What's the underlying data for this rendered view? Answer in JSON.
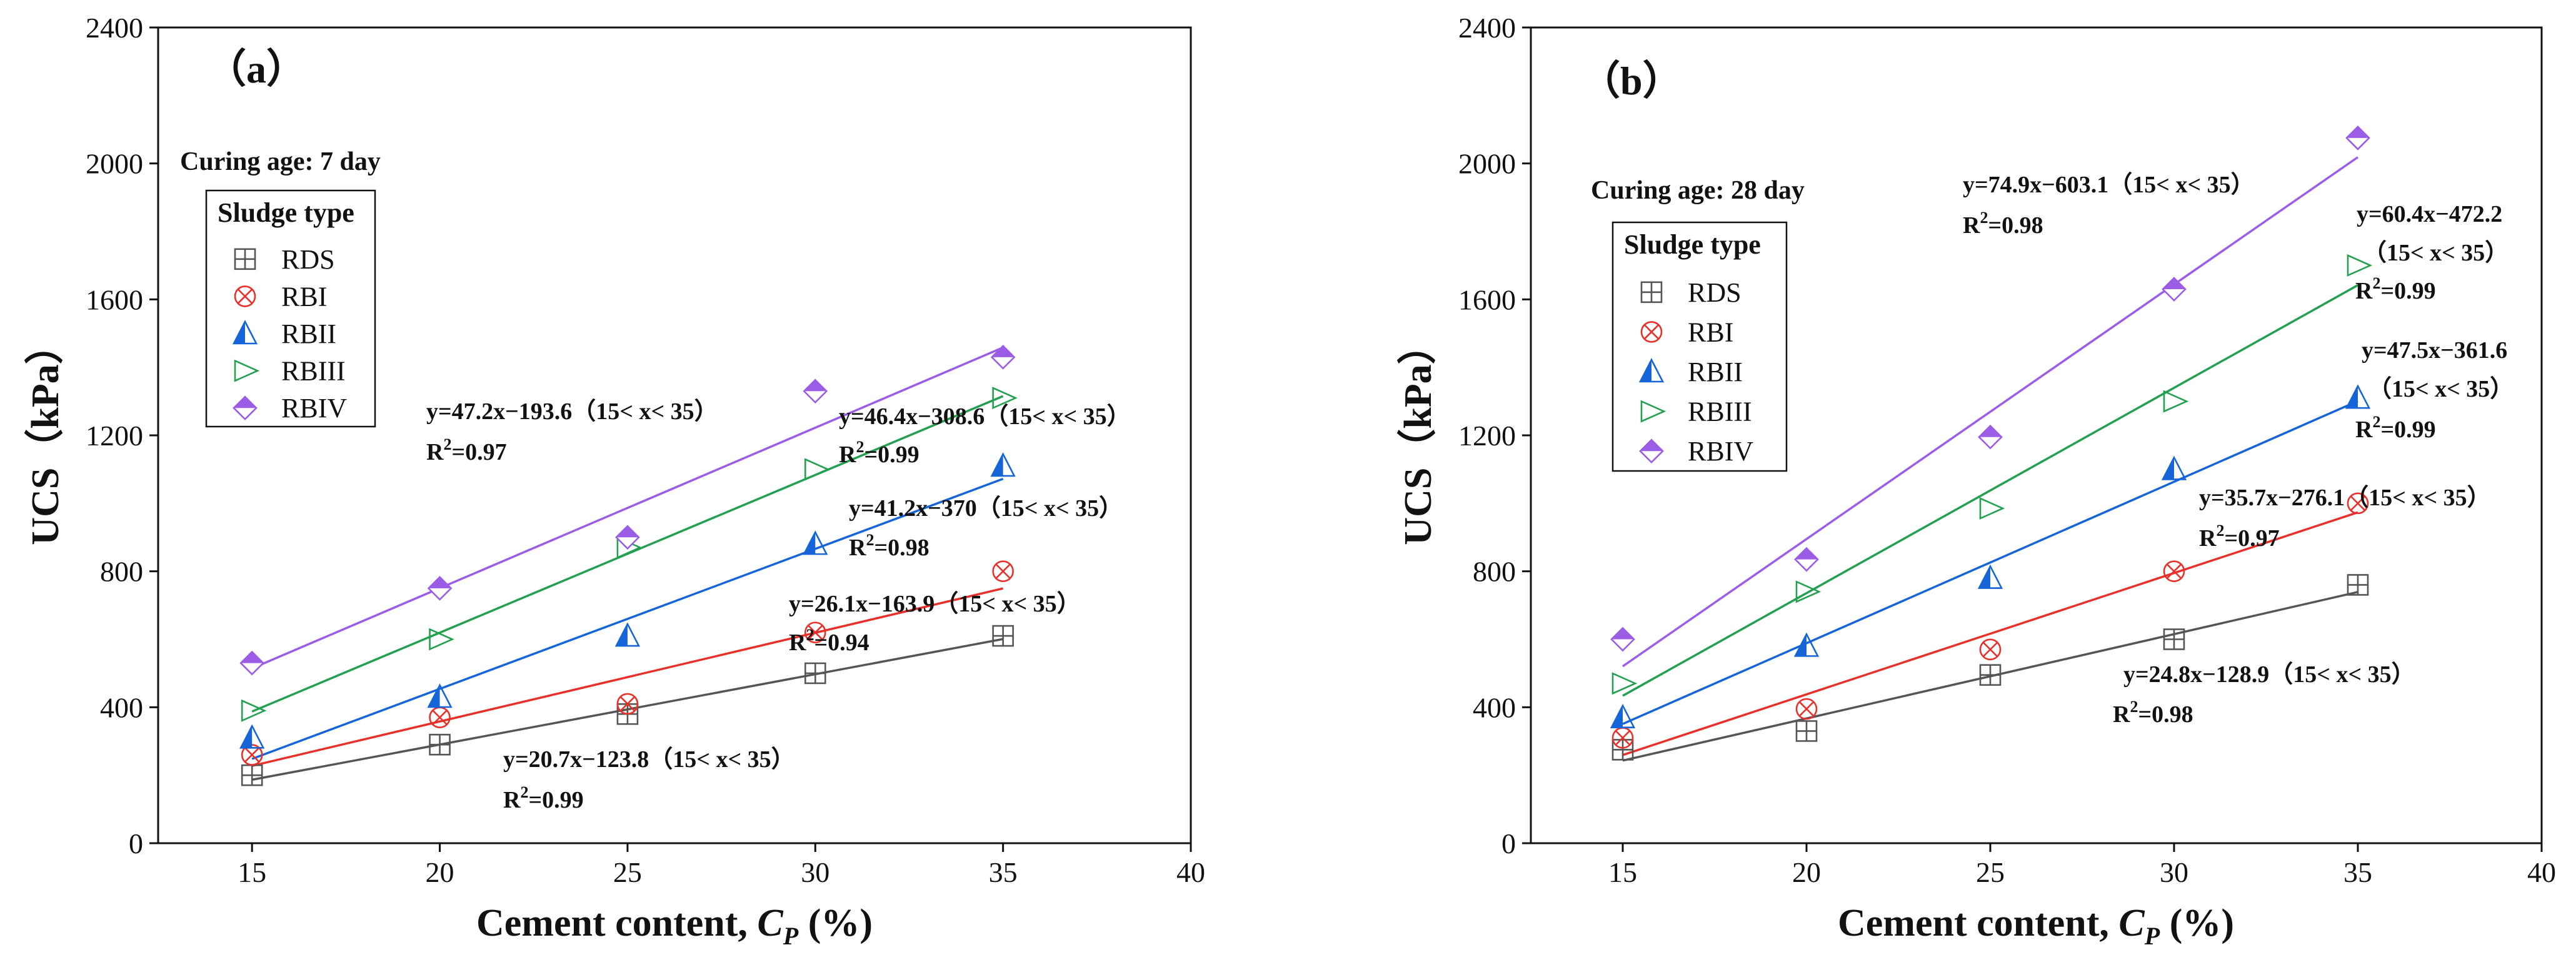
{
  "chart_data": [
    {
      "type": "scatter",
      "panel_label": "（a）",
      "curing_age": "Curing age: 7 day",
      "xlabel": "Cement content, ",
      "xlabel_symbol": "C",
      "xlabel_subscript": "P",
      "xlabel_unit": " (%)",
      "ylabel": "UCS（kPa）",
      "xlim": [
        12.5,
        40
      ],
      "ylim": [
        0,
        2400
      ],
      "xticks": [
        15,
        20,
        25,
        30,
        35,
        40
      ],
      "yticks": [
        0,
        400,
        800,
        1200,
        1600,
        2000,
        2400
      ],
      "legend_title": "Sludge type",
      "legend_position": "upper-left",
      "x": [
        15,
        20,
        25,
        30,
        35
      ],
      "series": [
        {
          "name": "RDS",
          "marker": "boxplus",
          "color": "#555555",
          "values": [
            200,
            290,
            380,
            500,
            610
          ],
          "fit": {
            "slope": 20.7,
            "intercept": -123.8
          },
          "equation": "y=20.7x−123.8（15< x< 35）",
          "r2_label": "R",
          "r2_value": "=0.99"
        },
        {
          "name": "RBI",
          "marker": "circlex",
          "color": "#e8302a",
          "values": [
            260,
            370,
            410,
            620,
            800
          ],
          "fit": {
            "slope": 26.1,
            "intercept": -163.9
          },
          "equation": "y=26.1x−163.9（15< x< 35）",
          "r2_label": "R",
          "r2_value": "=0.94"
        },
        {
          "name": "RBII",
          "marker": "tri-up",
          "color": "#1565d8",
          "values": [
            310,
            430,
            610,
            880,
            1110
          ],
          "fit": {
            "slope": 41.2,
            "intercept": -370
          },
          "equation": "y=41.2x−370（15< x< 35）",
          "r2_label": "R",
          "r2_value": "=0.98"
        },
        {
          "name": "RBIII",
          "marker": "tri-right",
          "color": "#22a050",
          "values": [
            390,
            600,
            870,
            1100,
            1310
          ],
          "fit": {
            "slope": 46.4,
            "intercept": -308.6
          },
          "equation": "y=46.4x−308.6（15< x< 35）",
          "r2_label": "R",
          "r2_value": "=0.99"
        },
        {
          "name": "RBIV",
          "marker": "diamond",
          "color": "#9b5de5",
          "values": [
            530,
            750,
            900,
            1330,
            1430
          ],
          "fit": {
            "slope": 47.2,
            "intercept": -193.6
          },
          "equation": "y=47.2x−193.6（15< x< 35）",
          "r2_label": "R",
          "r2_value": "=0.97"
        }
      ]
    },
    {
      "type": "scatter",
      "panel_label": "（b）",
      "curing_age": "Curing age: 28 day",
      "xlabel": "Cement content, ",
      "xlabel_symbol": "C",
      "xlabel_subscript": "P",
      "xlabel_unit": " (%)",
      "ylabel": "UCS（kPa）",
      "xlim": [
        12.5,
        40
      ],
      "ylim": [
        0,
        2400
      ],
      "xticks": [
        15,
        20,
        25,
        30,
        35,
        40
      ],
      "yticks": [
        0,
        400,
        800,
        1200,
        1600,
        2000,
        2400
      ],
      "legend_title": "Sludge type",
      "legend_position": "upper-left",
      "x": [
        15,
        20,
        25,
        30,
        35
      ],
      "series": [
        {
          "name": "RDS",
          "marker": "boxplus",
          "color": "#555555",
          "values": [
            275,
            330,
            495,
            600,
            760
          ],
          "fit": {
            "slope": 24.8,
            "intercept": -128.9
          },
          "equation": "y=24.8x−128.9（15< x< 35）",
          "r2_label": "R",
          "r2_value": "=0.98"
        },
        {
          "name": "RBI",
          "marker": "circlex",
          "color": "#e8302a",
          "values": [
            310,
            395,
            570,
            800,
            1000
          ],
          "fit": {
            "slope": 35.7,
            "intercept": -276.1
          },
          "equation": "y=35.7x−276.1（15< x< 35）",
          "r2_label": "R",
          "r2_value": "=0.97"
        },
        {
          "name": "RBII",
          "marker": "tri-up",
          "color": "#1565d8",
          "values": [
            370,
            580,
            780,
            1100,
            1310
          ],
          "fit": {
            "slope": 47.5,
            "intercept": -361.6
          },
          "equation": "y=47.5x−361.6",
          "equation_range": "（15< x< 35）",
          "r2_label": "R",
          "r2_value": "=0.99"
        },
        {
          "name": "RBIII",
          "marker": "tri-right",
          "color": "#22a050",
          "values": [
            470,
            740,
            985,
            1300,
            1700
          ],
          "fit": {
            "slope": 60.4,
            "intercept": -472.2
          },
          "equation": "y=60.4x−472.2",
          "equation_range": "（15< x< 35）",
          "r2_label": "R",
          "r2_value": "=0.99"
        },
        {
          "name": "RBIV",
          "marker": "diamond",
          "color": "#9b5de5",
          "values": [
            600,
            835,
            1195,
            1630,
            2075
          ],
          "fit": {
            "slope": 74.9,
            "intercept": -603.1
          },
          "equation": "y=74.9x−603.1（15< x< 35）",
          "r2_label": "R",
          "r2_value": "=0.98"
        }
      ]
    }
  ]
}
